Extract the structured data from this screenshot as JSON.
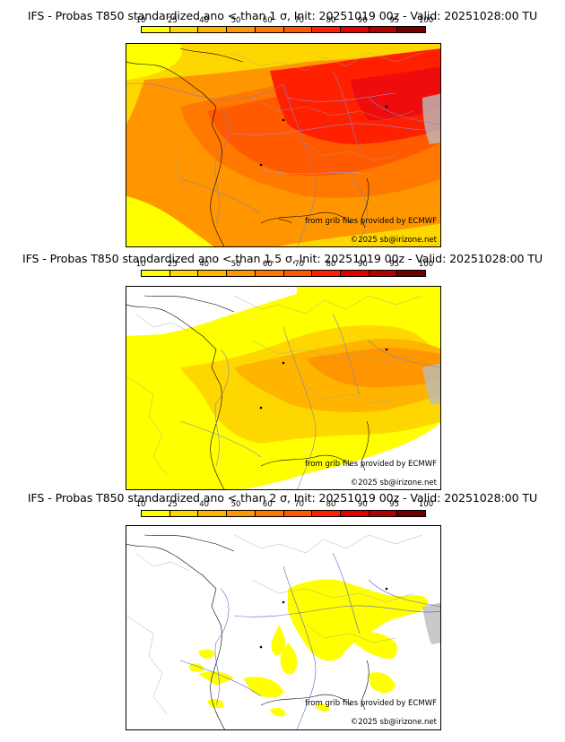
{
  "colorbar": {
    "ticks": [
      "10",
      "25",
      "40",
      "50",
      "60",
      "70",
      "80",
      "90",
      "95",
      "100"
    ],
    "colors": [
      "#ffff00",
      "#ffd700",
      "#ffb400",
      "#ff9600",
      "#ff7800",
      "#ff5a00",
      "#ff2000",
      "#e00000",
      "#b00000",
      "#700000"
    ]
  },
  "panels": [
    {
      "title": "IFS - Probas T850  standardized ano < than 1 σ, Init: 20251019 00z - Valid: 20251028:00 TU",
      "credit_source": "from grib files provided by ECMWF",
      "credit_copyright": "©2025 sb@irizone.net"
    },
    {
      "title": "IFS - Probas T850  standardized ano < than 1.5 σ, Init: 20251019 00z - Valid: 20251028:00 TU",
      "credit_source": "from grib files provided by ECMWF",
      "credit_copyright": "©2025 sb@irizone.net"
    },
    {
      "title": "IFS - Probas T850  standardized ano < than 2 σ, Init: 20251019 00z - Valid: 20251028:00 TU",
      "credit_source": "from grib files provided by ECMWF",
      "credit_copyright": "©2025 sb@irizone.net"
    }
  ]
}
